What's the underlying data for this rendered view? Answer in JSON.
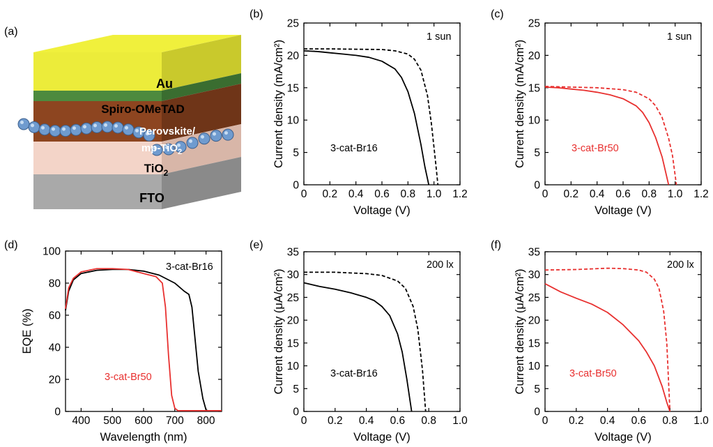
{
  "panels": [
    {
      "id": "a",
      "label": "(a)"
    },
    {
      "id": "b",
      "label": "(b)"
    },
    {
      "id": "c",
      "label": "(c)"
    },
    {
      "id": "d",
      "label": "(d)"
    },
    {
      "id": "e",
      "label": "(e)"
    },
    {
      "id": "f",
      "label": "(f)"
    }
  ],
  "device_schematic": {
    "layers": [
      {
        "name": "Au",
        "color": "#ecec3a"
      },
      {
        "name": "Spiro-OMeTAD",
        "color": "#4d8a3e"
      },
      {
        "name": "Perovskite/",
        "color": "#8d4520"
      },
      {
        "name": "mp-TiO",
        "subscript": "2",
        "color": "#8d4520"
      },
      {
        "name": "TiO",
        "subscript": "2",
        "color": "#f3d4c8"
      },
      {
        "name": "FTO",
        "color": "#a9a9a9"
      }
    ]
  },
  "colors": {
    "black": "#000000",
    "red": "#e8302f"
  },
  "chart_data": [
    {
      "panel": "b",
      "type": "line",
      "xlabel": "Voltage (V)",
      "ylabel": "Current density (mA/cm²)",
      "xlim": [
        0,
        1.2
      ],
      "ylim": [
        0,
        25
      ],
      "xticks": [
        "0",
        "0.2",
        "0.4",
        "0.6",
        "0.8",
        "1.0",
        "1.2"
      ],
      "yticks": [
        "0",
        "5",
        "10",
        "15",
        "20",
        "25"
      ],
      "annotations": [
        "1 sun",
        "3-cat-Br16"
      ],
      "annotation_color": "#000000",
      "series": [
        {
          "color": "#000000",
          "dash": "solid",
          "x": [
            0,
            0.1,
            0.2,
            0.3,
            0.4,
            0.5,
            0.6,
            0.7,
            0.75,
            0.8,
            0.85,
            0.9,
            0.93,
            0.96
          ],
          "y": [
            20.7,
            20.6,
            20.4,
            20.2,
            20.0,
            19.7,
            19.1,
            17.9,
            16.6,
            14.4,
            11.0,
            6.2,
            2.8,
            0
          ]
        },
        {
          "color": "#000000",
          "dash": "dashed",
          "x": [
            0,
            0.2,
            0.4,
            0.6,
            0.7,
            0.8,
            0.85,
            0.9,
            0.95,
            0.98,
            1.01,
            1.03
          ],
          "y": [
            21.0,
            21.0,
            20.95,
            20.9,
            20.7,
            20.2,
            19.4,
            17.7,
            13.8,
            9.5,
            4.0,
            0
          ]
        }
      ]
    },
    {
      "panel": "c",
      "type": "line",
      "xlabel": "Voltage (V)",
      "ylabel": "Current density (mA/cm²)",
      "xlim": [
        0,
        1.2
      ],
      "ylim": [
        0,
        25
      ],
      "xticks": [
        "0",
        "0.2",
        "0.4",
        "0.6",
        "0.8",
        "1.0",
        "1.2"
      ],
      "yticks": [
        "0",
        "5",
        "10",
        "15",
        "20",
        "25"
      ],
      "annotations": [
        "1 sun",
        "3-cat-Br50"
      ],
      "annotation_color": "#e8302f",
      "series": [
        {
          "color": "#e8302f",
          "dash": "solid",
          "x": [
            0,
            0.1,
            0.2,
            0.3,
            0.4,
            0.5,
            0.6,
            0.7,
            0.75,
            0.8,
            0.85,
            0.9,
            0.95
          ],
          "y": [
            15.1,
            15.0,
            14.8,
            14.6,
            14.3,
            13.9,
            13.3,
            12.2,
            11.2,
            9.6,
            7.3,
            4.3,
            0
          ]
        },
        {
          "color": "#e8302f",
          "dash": "dashed",
          "x": [
            0,
            0.2,
            0.4,
            0.6,
            0.7,
            0.8,
            0.85,
            0.9,
            0.95,
            0.98,
            1.01
          ],
          "y": [
            15.2,
            15.1,
            15.0,
            14.7,
            14.3,
            13.3,
            12.2,
            10.4,
            7.2,
            4.5,
            0
          ]
        }
      ]
    },
    {
      "panel": "d",
      "type": "line",
      "xlabel": "Wavelength (nm)",
      "ylabel": "EQE (%)",
      "xlim": [
        350,
        850
      ],
      "ylim": [
        0,
        100
      ],
      "xticks": [
        "400",
        "500",
        "600",
        "700",
        "800"
      ],
      "yticks": [
        "0",
        "20",
        "40",
        "60",
        "80",
        "100"
      ],
      "series": [
        {
          "name": "3-cat-Br16",
          "color": "#000000",
          "dash": "solid",
          "x": [
            350,
            360,
            375,
            400,
            450,
            500,
            550,
            600,
            650,
            700,
            730,
            745,
            755,
            765,
            775,
            790,
            800,
            805,
            850
          ],
          "y": [
            63,
            75,
            82,
            86,
            88,
            88.5,
            88.5,
            87.5,
            85,
            80,
            75,
            73,
            65,
            45,
            25,
            8,
            1,
            0.5,
            0.5
          ]
        },
        {
          "name": "3-cat-Br50",
          "color": "#e8302f",
          "dash": "solid",
          "x": [
            350,
            360,
            375,
            400,
            450,
            500,
            550,
            600,
            640,
            660,
            670,
            680,
            690,
            700,
            710,
            850
          ],
          "y": [
            64,
            77,
            83,
            87,
            89,
            89,
            88.5,
            86,
            84,
            80,
            65,
            35,
            10,
            2,
            0.5,
            0.5
          ]
        }
      ]
    },
    {
      "panel": "e",
      "type": "line",
      "xlabel": "Voltage (V)",
      "ylabel": "Current density (μA/cm²)",
      "xlim": [
        0,
        1.0
      ],
      "ylim": [
        0,
        35
      ],
      "xticks": [
        "0",
        "0.2",
        "0.4",
        "0.6",
        "0.8",
        "1.0"
      ],
      "yticks": [
        "0",
        "5",
        "10",
        "15",
        "20",
        "25",
        "30",
        "35"
      ],
      "annotations": [
        "200 lx",
        "3-cat-Br16"
      ],
      "annotation_color": "#000000",
      "series": [
        {
          "color": "#000000",
          "dash": "solid",
          "x": [
            0,
            0.1,
            0.2,
            0.3,
            0.4,
            0.45,
            0.5,
            0.55,
            0.6,
            0.63,
            0.66,
            0.69
          ],
          "y": [
            28.2,
            27.4,
            26.8,
            26.0,
            25.0,
            24.3,
            23.0,
            21.0,
            17.0,
            13.0,
            7.0,
            0
          ]
        },
        {
          "color": "#000000",
          "dash": "dashed",
          "x": [
            0,
            0.2,
            0.4,
            0.5,
            0.6,
            0.65,
            0.7,
            0.73,
            0.76,
            0.78
          ],
          "y": [
            30.5,
            30.5,
            30.2,
            29.8,
            28.6,
            27.0,
            23.0,
            18.0,
            9.0,
            0
          ]
        }
      ]
    },
    {
      "panel": "f",
      "type": "line",
      "xlabel": "Voltage (V)",
      "ylabel": "Current density (μA/cm²)",
      "xlim": [
        0,
        1.0
      ],
      "ylim": [
        0,
        35
      ],
      "xticks": [
        "0",
        "0.2",
        "0.4",
        "0.6",
        "0.8",
        "1.0"
      ],
      "yticks": [
        "0",
        "5",
        "10",
        "15",
        "20",
        "25",
        "30",
        "35"
      ],
      "annotations": [
        "200 lx",
        "3-cat-Br50"
      ],
      "annotation_color": "#e8302f",
      "series": [
        {
          "color": "#e8302f",
          "dash": "solid",
          "x": [
            0,
            0.1,
            0.2,
            0.3,
            0.4,
            0.5,
            0.6,
            0.65,
            0.7,
            0.75,
            0.78,
            0.8
          ],
          "y": [
            28.0,
            26.2,
            24.8,
            23.5,
            21.7,
            19.0,
            15.5,
            13.0,
            10.0,
            5.5,
            2.0,
            0
          ]
        },
        {
          "color": "#e8302f",
          "dash": "dashed",
          "x": [
            0,
            0.2,
            0.4,
            0.5,
            0.6,
            0.65,
            0.7,
            0.73,
            0.76,
            0.78,
            0.8
          ],
          "y": [
            31.0,
            31.1,
            31.4,
            31.3,
            31.0,
            30.5,
            29.0,
            27.0,
            22.0,
            15.0,
            0
          ]
        }
      ]
    }
  ]
}
